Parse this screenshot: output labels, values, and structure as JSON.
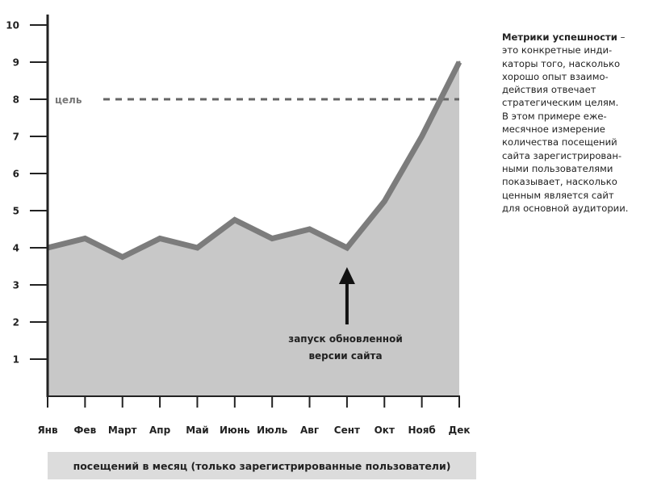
{
  "chart_data": {
    "type": "area",
    "categories": [
      "Янв",
      "Фев",
      "Март",
      "Апр",
      "Май",
      "Июнь",
      "Июль",
      "Авг",
      "Сент",
      "Окт",
      "Нояб",
      "Дек"
    ],
    "values": [
      4.0,
      4.25,
      3.75,
      4.25,
      4.0,
      4.75,
      4.25,
      4.5,
      4.0,
      5.25,
      7.0,
      9.0
    ],
    "xlabel": "посещений в месяц (только зарегистрированные пользователи)",
    "ylabel": "",
    "ylim": [
      0,
      10
    ],
    "yticks": [
      1,
      2,
      3,
      4,
      5,
      6,
      7,
      8,
      9,
      10
    ],
    "grid": false,
    "goal": {
      "label": "цель",
      "value": 8
    },
    "annotation": {
      "lines": [
        "запуск обновленной",
        "версии сайта"
      ],
      "category": "Сент"
    },
    "colors": {
      "area_fill": "#c8c8c8",
      "line": "#7c7c7c",
      "goal_line": "#666666",
      "axis": "#222222",
      "arrow": "#111111"
    }
  },
  "note": {
    "term": "Метрики успешности",
    "lines": [
      " –",
      "это конкретные инди-",
      "каторы того, насколько",
      "хорошо опыт взаимо-",
      "действия отвечает",
      "стратегическим целям.",
      "В этом примере еже-",
      "месячное измерение",
      "количества посещений",
      "сайта зарегистрирован-",
      "ными пользователями",
      "показывает, насколько",
      "ценным является сайт",
      "для основной аудитории."
    ]
  }
}
